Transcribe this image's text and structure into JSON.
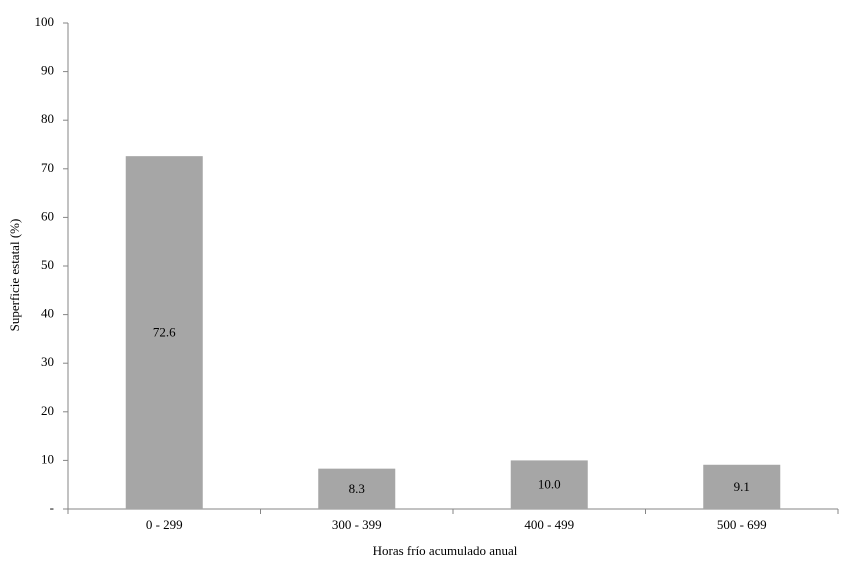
{
  "chart_data": {
    "type": "bar",
    "x_label": "Horas frío acumulado anual",
    "y_label": "Superficie estatal (%)",
    "categories": [
      "0 - 299",
      "300 - 399",
      "400 - 499",
      "500 - 699"
    ],
    "values": [
      72.6,
      8.3,
      10,
      9.1
    ],
    "value_labels": [
      "72.6",
      "8.3",
      "10.0",
      "9.1"
    ],
    "color": "#a6a6a6",
    "ylim": [
      0,
      100
    ],
    "yticks": [
      {
        "value": 0,
        "label": "-"
      },
      10,
      20,
      30,
      40,
      50,
      60,
      70,
      80,
      90,
      100
    ],
    "grid": false
  }
}
